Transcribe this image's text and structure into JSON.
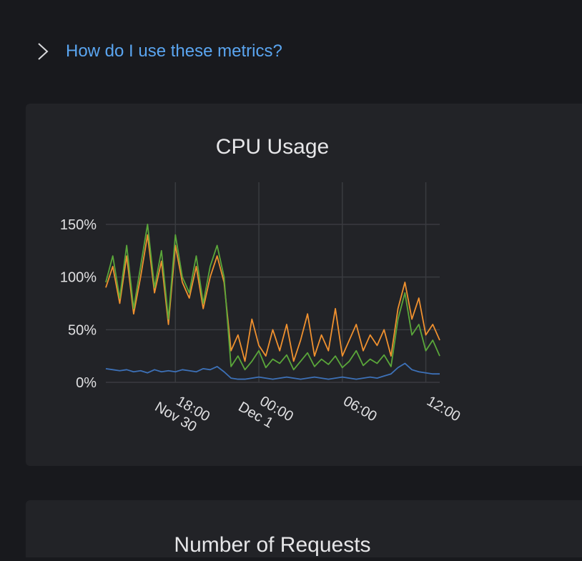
{
  "help_link": "How do I use these metrics?",
  "chart_data": {
    "type": "line",
    "title": "CPU Usage",
    "x": [
      13,
      13.5,
      14,
      14.5,
      15,
      15.5,
      16,
      16.5,
      17,
      17.5,
      18,
      18.5,
      19,
      19.5,
      20,
      20.5,
      21,
      21.5,
      22,
      22.5,
      23,
      23.5,
      24,
      24.5,
      25,
      25.5,
      26,
      26.5,
      27,
      27.5,
      28,
      28.5,
      29,
      29.5,
      30,
      30.5,
      31,
      31.5,
      32,
      32.5,
      33,
      33.5,
      34,
      34.5,
      35,
      35.5,
      36,
      36.5,
      37
    ],
    "xlim": [
      13,
      37
    ],
    "xticks": [
      {
        "value": 18,
        "label": "18:00\nNov 30"
      },
      {
        "value": 24,
        "label": "00:00\nDec 1"
      },
      {
        "value": 30,
        "label": "06:00"
      },
      {
        "value": 36,
        "label": "12:00"
      }
    ],
    "ylim": [
      0,
      190
    ],
    "yticks": [
      {
        "value": 0,
        "label": "0%"
      },
      {
        "value": 50,
        "label": "50%"
      },
      {
        "value": 100,
        "label": "100%"
      },
      {
        "value": 150,
        "label": "150%"
      }
    ],
    "grid": true,
    "series": [
      {
        "color": "#3d71b8",
        "values": [
          13,
          12,
          11,
          12,
          10,
          11,
          9,
          12,
          10,
          11,
          10,
          12,
          11,
          10,
          13,
          12,
          15,
          10,
          4,
          3,
          3,
          4,
          5,
          4,
          3,
          4,
          5,
          4,
          3,
          4,
          5,
          4,
          3,
          4,
          5,
          4,
          3,
          4,
          5,
          4,
          6,
          8,
          14,
          18,
          12,
          10,
          9,
          8,
          8
        ]
      },
      {
        "color": "#f0912f",
        "values": [
          90,
          110,
          75,
          120,
          65,
          100,
          140,
          85,
          115,
          55,
          130,
          95,
          80,
          110,
          70,
          100,
          120,
          95,
          30,
          45,
          20,
          60,
          35,
          25,
          50,
          30,
          55,
          20,
          40,
          65,
          25,
          45,
          30,
          70,
          25,
          40,
          55,
          30,
          45,
          35,
          50,
          25,
          70,
          95,
          60,
          80,
          45,
          55,
          40
        ]
      },
      {
        "color": "#5aa63a",
        "values": [
          95,
          120,
          80,
          130,
          70,
          110,
          150,
          90,
          125,
          60,
          140,
          100,
          85,
          120,
          75,
          110,
          130,
          100,
          15,
          25,
          12,
          20,
          30,
          14,
          22,
          18,
          26,
          12,
          20,
          28,
          15,
          22,
          17,
          25,
          14,
          20,
          30,
          16,
          22,
          18,
          26,
          15,
          60,
          85,
          45,
          55,
          30,
          40,
          25
        ]
      }
    ]
  },
  "next_panel": {
    "title": "Number of Requests"
  }
}
